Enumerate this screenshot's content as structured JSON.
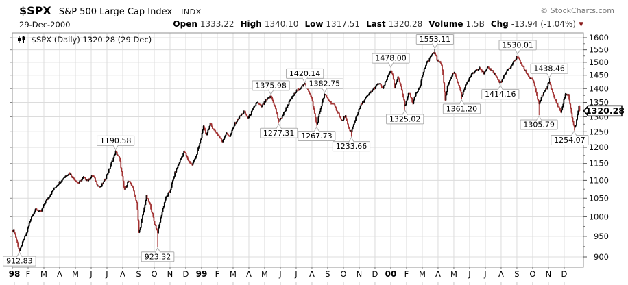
{
  "header": {
    "symbol": "$SPX",
    "name": "S&P 500 Large Cap Index",
    "exchange": "INDX",
    "date": "29-Dec-2000",
    "copyright": "© StockCharts.com",
    "quote": {
      "open_label": "Open",
      "open": "1333.22",
      "high_label": "High",
      "high": "1340.10",
      "low_label": "Low",
      "low": "1317.51",
      "last_label": "Last",
      "last": "1320.28",
      "volume_label": "Volume",
      "volume": "1.5B",
      "chg_label": "Chg",
      "chg": "-13.94 (-1.04%)"
    }
  },
  "colors": {
    "candle_up": "#000000",
    "candle_down": "#a23232",
    "grid": "#dcdcdc",
    "frame": "#909090",
    "annotation_border": "#b0b0b0",
    "change_triangle": "#8b1e1e"
  },
  "chart_data": {
    "type": "candlestick",
    "legend": "$SPX (Daily) 1320.28 (29 Dec)",
    "scale": "log",
    "ylim": [
      876,
      1620
    ],
    "y_ticks": [
      900,
      950,
      1000,
      1050,
      1100,
      1150,
      1200,
      1250,
      1300,
      1350,
      1400,
      1450,
      1500,
      1550,
      1600
    ],
    "y_minor_step": 25,
    "x_labels": [
      "98",
      "F",
      "M",
      "A",
      "M",
      "J",
      "J",
      "A",
      "S",
      "O",
      "N",
      "D",
      "99",
      "F",
      "M",
      "A",
      "M",
      "J",
      "J",
      "A",
      "S",
      "O",
      "N",
      "D",
      "00",
      "F",
      "M",
      "A",
      "M",
      "J",
      "J",
      "A",
      "S",
      "O",
      "N",
      "D"
    ],
    "year_labels": [
      "98",
      "99",
      "00"
    ],
    "days_per_month": 21,
    "last_close": 1320.28,
    "anchors_m_close": [
      [
        0.1,
        965
      ],
      [
        0.45,
        913
      ],
      [
        0.7,
        940
      ],
      [
        0.9,
        958
      ],
      [
        1.2,
        1000
      ],
      [
        1.5,
        1020
      ],
      [
        1.8,
        1012
      ],
      [
        2.1,
        1040
      ],
      [
        2.4,
        1060
      ],
      [
        2.7,
        1080
      ],
      [
        3.0,
        1095
      ],
      [
        3.3,
        1110
      ],
      [
        3.6,
        1122
      ],
      [
        3.9,
        1105
      ],
      [
        4.2,
        1092
      ],
      [
        4.5,
        1108
      ],
      [
        4.8,
        1100
      ],
      [
        5.1,
        1115
      ],
      [
        5.4,
        1087
      ],
      [
        5.6,
        1080
      ],
      [
        5.9,
        1105
      ],
      [
        6.2,
        1140
      ],
      [
        6.55,
        1186
      ],
      [
        6.8,
        1165
      ],
      [
        7.1,
        1072
      ],
      [
        7.35,
        1098
      ],
      [
        7.6,
        1085
      ],
      [
        7.9,
        1035
      ],
      [
        8.03,
        957
      ],
      [
        8.25,
        1000
      ],
      [
        8.5,
        1055
      ],
      [
        8.75,
        1030
      ],
      [
        9.0,
        985
      ],
      [
        9.22,
        960
      ],
      [
        9.45,
        1005
      ],
      [
        9.7,
        1048
      ],
      [
        10.0,
        1070
      ],
      [
        10.3,
        1120
      ],
      [
        10.6,
        1155
      ],
      [
        10.9,
        1188
      ],
      [
        11.15,
        1160
      ],
      [
        11.4,
        1145
      ],
      [
        11.7,
        1180
      ],
      [
        11.97,
        1229
      ],
      [
        12.1,
        1268
      ],
      [
        12.3,
        1240
      ],
      [
        12.55,
        1275
      ],
      [
        12.8,
        1255
      ],
      [
        13.05,
        1240
      ],
      [
        13.3,
        1218
      ],
      [
        13.55,
        1245
      ],
      [
        13.8,
        1235
      ],
      [
        14.1,
        1275
      ],
      [
        14.4,
        1300
      ],
      [
        14.7,
        1318
      ],
      [
        14.95,
        1295
      ],
      [
        15.2,
        1320
      ],
      [
        15.5,
        1350
      ],
      [
        15.8,
        1335
      ],
      [
        16.05,
        1355
      ],
      [
        16.4,
        1373
      ],
      [
        16.65,
        1335
      ],
      [
        16.9,
        1283
      ],
      [
        17.15,
        1305
      ],
      [
        17.45,
        1340
      ],
      [
        17.7,
        1365
      ],
      [
        18.0,
        1390
      ],
      [
        18.3,
        1405
      ],
      [
        18.55,
        1418
      ],
      [
        18.8,
        1390
      ],
      [
        19.0,
        1360
      ],
      [
        19.3,
        1272
      ],
      [
        19.55,
        1330
      ],
      [
        19.8,
        1380
      ],
      [
        20.1,
        1355
      ],
      [
        20.4,
        1340
      ],
      [
        20.7,
        1310
      ],
      [
        20.9,
        1283
      ],
      [
        21.1,
        1305
      ],
      [
        21.3,
        1265
      ],
      [
        21.5,
        1248
      ],
      [
        21.8,
        1300
      ],
      [
        22.1,
        1340
      ],
      [
        22.4,
        1365
      ],
      [
        22.7,
        1385
      ],
      [
        23.0,
        1405
      ],
      [
        23.25,
        1420
      ],
      [
        23.5,
        1400
      ],
      [
        23.75,
        1435
      ],
      [
        24.0,
        1472
      ],
      [
        24.1,
        1455
      ],
      [
        24.25,
        1402
      ],
      [
        24.45,
        1441
      ],
      [
        24.65,
        1410
      ],
      [
        24.9,
        1335
      ],
      [
        25.15,
        1388
      ],
      [
        25.4,
        1348
      ],
      [
        25.6,
        1383
      ],
      [
        25.85,
        1410
      ],
      [
        26.1,
        1470
      ],
      [
        26.3,
        1500
      ],
      [
        26.55,
        1525
      ],
      [
        26.8,
        1540
      ],
      [
        26.95,
        1505
      ],
      [
        27.15,
        1505
      ],
      [
        27.3,
        1460
      ],
      [
        27.45,
        1357
      ],
      [
        27.6,
        1410
      ],
      [
        27.8,
        1440
      ],
      [
        28.0,
        1462
      ],
      [
        28.2,
        1430
      ],
      [
        28.5,
        1373
      ],
      [
        28.8,
        1420
      ],
      [
        29.1,
        1450
      ],
      [
        29.4,
        1470
      ],
      [
        29.65,
        1480
      ],
      [
        29.9,
        1455
      ],
      [
        30.15,
        1478
      ],
      [
        30.4,
        1470
      ],
      [
        30.65,
        1450
      ],
      [
        30.9,
        1420
      ],
      [
        31.05,
        1430
      ],
      [
        31.3,
        1460
      ],
      [
        31.6,
        1483
      ],
      [
        31.85,
        1508
      ],
      [
        32.05,
        1522
      ],
      [
        32.3,
        1490
      ],
      [
        32.55,
        1465
      ],
      [
        32.8,
        1440
      ],
      [
        33.0,
        1436
      ],
      [
        33.15,
        1400
      ],
      [
        33.4,
        1342
      ],
      [
        33.6,
        1375
      ],
      [
        33.85,
        1398
      ],
      [
        34.05,
        1428
      ],
      [
        34.3,
        1375
      ],
      [
        34.5,
        1350
      ],
      [
        34.8,
        1315
      ],
      [
        35.05,
        1376
      ],
      [
        35.25,
        1380
      ],
      [
        35.45,
        1312
      ],
      [
        35.62,
        1265
      ],
      [
        35.75,
        1274
      ],
      [
        35.85,
        1315
      ],
      [
        35.93,
        1334
      ],
      [
        35.98,
        1320.28
      ]
    ],
    "annotations": [
      {
        "label": "912.83",
        "value": 912.83,
        "m": 0.45,
        "side": "low"
      },
      {
        "label": "1190.58",
        "value": 1190.58,
        "m": 6.55,
        "side": "high"
      },
      {
        "label": "923.32",
        "value": 923.32,
        "m": 9.22,
        "side": "low"
      },
      {
        "label": "1375.98",
        "value": 1375.98,
        "m": 16.4,
        "side": "high"
      },
      {
        "label": "1277.31",
        "value": 1277.31,
        "m": 16.9,
        "side": "low"
      },
      {
        "label": "1420.14",
        "value": 1420.14,
        "m": 18.55,
        "side": "high"
      },
      {
        "label": "1267.73",
        "value": 1267.73,
        "m": 19.3,
        "side": "low"
      },
      {
        "label": "1382.75",
        "value": 1382.75,
        "m": 19.8,
        "side": "high"
      },
      {
        "label": "1233.66",
        "value": 1233.66,
        "m": 21.5,
        "side": "low"
      },
      {
        "label": "1478.00",
        "value": 1478.0,
        "m": 24.0,
        "side": "high"
      },
      {
        "label": "1325.02",
        "value": 1325.02,
        "m": 24.9,
        "side": "low"
      },
      {
        "label": "1553.11",
        "value": 1553.11,
        "m": 26.8,
        "side": "high"
      },
      {
        "label": "1361.20",
        "value": 1361.2,
        "m": 28.5,
        "side": "low"
      },
      {
        "label": "1414.16",
        "value": 1414.16,
        "m": 30.95,
        "side": "low"
      },
      {
        "label": "1530.01",
        "value": 1530.01,
        "m": 32.05,
        "side": "high"
      },
      {
        "label": "1305.79",
        "value": 1305.79,
        "m": 33.4,
        "side": "low"
      },
      {
        "label": "1438.46",
        "value": 1438.46,
        "m": 34.05,
        "side": "high"
      },
      {
        "label": "1254.07",
        "value": 1254.07,
        "m": 35.62,
        "side": "low"
      }
    ]
  }
}
